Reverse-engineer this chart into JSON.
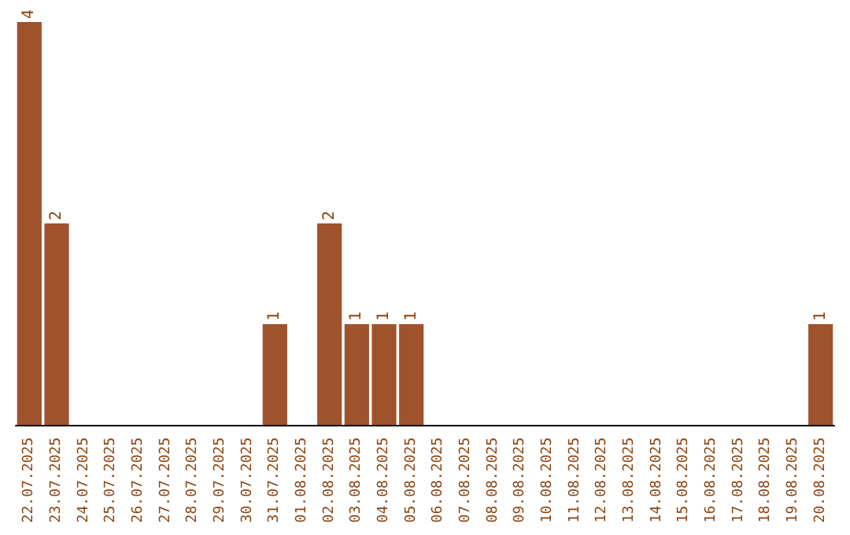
{
  "chart_data": {
    "type": "bar",
    "categories": [
      "22.07.2025",
      "23.07.2025",
      "24.07.2025",
      "25.07.2025",
      "26.07.2025",
      "27.07.2025",
      "28.07.2025",
      "29.07.2025",
      "30.07.2025",
      "31.07.2025",
      "01.08.2025",
      "02.08.2025",
      "03.08.2025",
      "04.08.2025",
      "05.08.2025",
      "06.08.2025",
      "07.08.2025",
      "08.08.2025",
      "09.08.2025",
      "10.08.2025",
      "11.08.2025",
      "12.08.2025",
      "13.08.2025",
      "14.08.2025",
      "15.08.2025",
      "16.08.2025",
      "17.08.2025",
      "18.08.2025",
      "19.08.2025",
      "20.08.2025"
    ],
    "values": [
      4,
      2,
      0,
      0,
      0,
      0,
      0,
      0,
      0,
      1,
      0,
      2,
      1,
      1,
      1,
      0,
      0,
      0,
      0,
      0,
      0,
      0,
      0,
      0,
      0,
      0,
      0,
      0,
      0,
      1
    ],
    "value_labels": [
      "4",
      "2",
      null,
      null,
      null,
      null,
      null,
      null,
      null,
      "1",
      null,
      "2",
      "1",
      "1",
      "1",
      null,
      null,
      null,
      null,
      null,
      null,
      null,
      null,
      null,
      null,
      null,
      null,
      null,
      null,
      "1"
    ],
    "color": "#a0522d"
  }
}
